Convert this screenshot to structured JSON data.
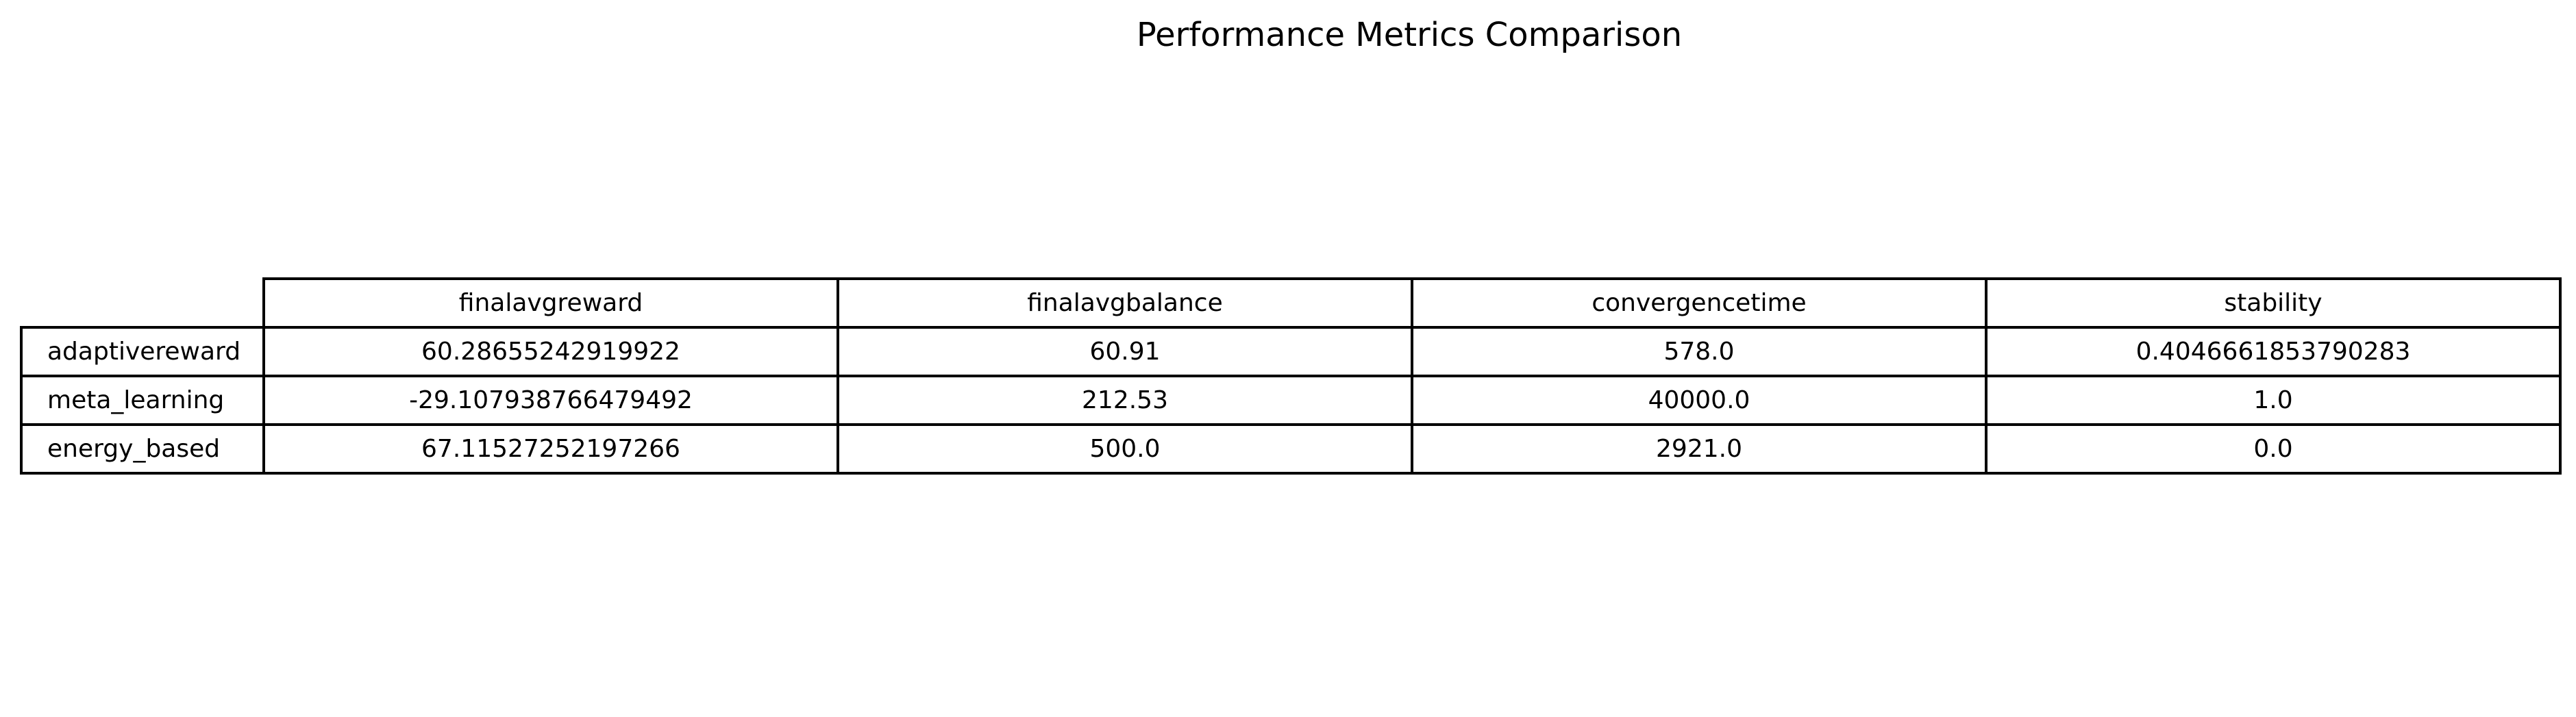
{
  "chart_data": {
    "type": "table",
    "title": "Performance Metrics Comparison",
    "columns": [
      "finalavgreward",
      "finalavgbalance",
      "convergencetime",
      "stability"
    ],
    "rows": [
      {
        "label": "adaptivereward",
        "values": [
          "60.28655242919922",
          "60.91",
          "578.0",
          "0.4046661853790283"
        ]
      },
      {
        "label": "meta_learning",
        "values": [
          "-29.107938766479492",
          "212.53",
          "40000.0",
          "1.0"
        ]
      },
      {
        "label": "energy_based",
        "values": [
          "67.11527252197266",
          "500.0",
          "2921.0",
          "0.0"
        ]
      }
    ]
  }
}
